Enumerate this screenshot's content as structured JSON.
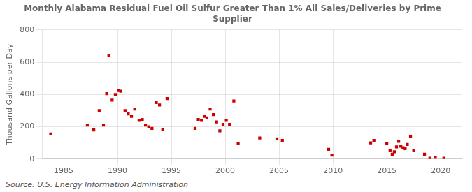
{
  "chart_data": {
    "type": "scatter",
    "title": "Monthly Alabama Residual Fuel Oil Sulfur Greater Than 1% All Sales/Deliveries by Prime\nSupplier",
    "ylabel": "Thousand Gallons per Day",
    "annotation": "Source: U.S. Energy Information Administration",
    "color": "#cc0000",
    "marker": "square",
    "grid": true,
    "xlim": [
      1983,
      2022
    ],
    "ylim": [
      0,
      800
    ],
    "xticks": [
      1985,
      1990,
      1995,
      2000,
      2005,
      2010,
      2015,
      2020
    ],
    "yticks": [
      0,
      200,
      400,
      600,
      800
    ],
    "x": [
      1983.8,
      1987.2,
      1987.8,
      1988.3,
      1988.7,
      1989.0,
      1989.2,
      1989.5,
      1989.8,
      1990.1,
      1990.3,
      1990.7,
      1991.0,
      1991.3,
      1991.6,
      1992.0,
      1992.3,
      1992.6,
      1992.9,
      1993.2,
      1993.6,
      1993.9,
      1994.2,
      1994.6,
      1997.2,
      1997.5,
      1997.8,
      1998.1,
      1998.3,
      1998.6,
      1998.9,
      1999.2,
      1999.5,
      1999.8,
      2000.1,
      2000.4,
      2000.8,
      2001.2,
      2003.2,
      2004.8,
      2005.3,
      2009.6,
      2009.9,
      2013.5,
      2013.8,
      2015.0,
      2015.3,
      2015.5,
      2015.7,
      2015.9,
      2016.1,
      2016.3,
      2016.5,
      2016.7,
      2016.9,
      2017.2,
      2017.5,
      2018.5,
      2019.0,
      2019.5,
      2020.3
    ],
    "values": [
      155,
      210,
      180,
      300,
      210,
      405,
      640,
      365,
      400,
      425,
      420,
      300,
      280,
      265,
      310,
      240,
      245,
      210,
      200,
      190,
      350,
      335,
      185,
      375,
      190,
      245,
      240,
      265,
      255,
      310,
      275,
      230,
      175,
      215,
      240,
      215,
      360,
      95,
      130,
      125,
      115,
      60,
      25,
      100,
      115,
      95,
      55,
      30,
      45,
      75,
      110,
      80,
      70,
      65,
      90,
      140,
      55,
      30,
      5,
      10,
      5
    ]
  }
}
